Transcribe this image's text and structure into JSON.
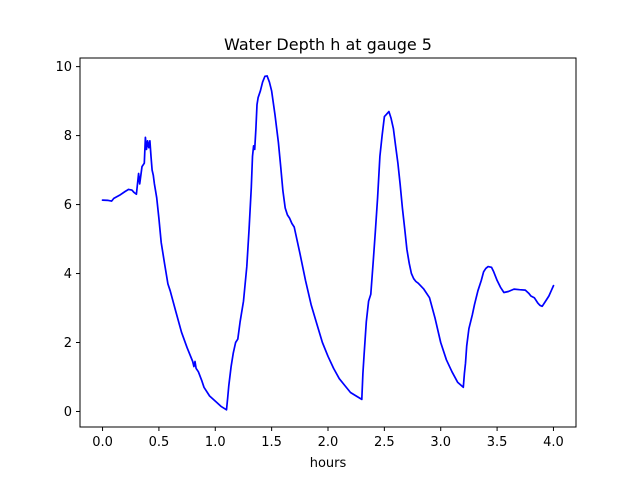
{
  "chart_data": {
    "type": "line",
    "title": "Water Depth h at gauge 5",
    "xlabel": "hours",
    "ylabel": "",
    "xlim": [
      -0.2,
      4.2
    ],
    "ylim": [
      -0.45,
      10.25
    ],
    "grid": false,
    "x_ticks": [
      0.0,
      0.5,
      1.0,
      1.5,
      2.0,
      2.5,
      3.0,
      3.5,
      4.0
    ],
    "x_tick_labels": [
      "0.0",
      "0.5",
      "1.0",
      "1.5",
      "2.0",
      "2.5",
      "3.0",
      "3.5",
      "4.0"
    ],
    "y_ticks": [
      0,
      2,
      4,
      6,
      8,
      10
    ],
    "y_tick_labels": [
      "0",
      "2",
      "4",
      "6",
      "8",
      "10"
    ],
    "series": [
      {
        "color": "#0000ff",
        "x": [
          0.0,
          0.05,
          0.08,
          0.1,
          0.15,
          0.2,
          0.23,
          0.26,
          0.28,
          0.3,
          0.32,
          0.33,
          0.35,
          0.37,
          0.38,
          0.39,
          0.4,
          0.41,
          0.42,
          0.43,
          0.44,
          0.45,
          0.46,
          0.48,
          0.5,
          0.52,
          0.55,
          0.58,
          0.6,
          0.65,
          0.7,
          0.75,
          0.8,
          0.81,
          0.82,
          0.83,
          0.85,
          0.88,
          0.9,
          0.95,
          1.0,
          1.05,
          1.1,
          1.11,
          1.12,
          1.14,
          1.16,
          1.18,
          1.2,
          1.22,
          1.25,
          1.28,
          1.3,
          1.32,
          1.33,
          1.34,
          1.35,
          1.36,
          1.37,
          1.38,
          1.4,
          1.42,
          1.44,
          1.46,
          1.48,
          1.5,
          1.53,
          1.56,
          1.58,
          1.6,
          1.62,
          1.64,
          1.66,
          1.68,
          1.7,
          1.75,
          1.8,
          1.85,
          1.9,
          1.95,
          2.0,
          2.05,
          2.1,
          2.15,
          2.2,
          2.25,
          2.3,
          2.31,
          2.32,
          2.34,
          2.36,
          2.38,
          2.4,
          2.42,
          2.44,
          2.46,
          2.48,
          2.5,
          2.52,
          2.54,
          2.56,
          2.58,
          2.6,
          2.62,
          2.64,
          2.66,
          2.68,
          2.7,
          2.72,
          2.74,
          2.76,
          2.78,
          2.8,
          2.85,
          2.9,
          2.95,
          3.0,
          3.05,
          3.1,
          3.15,
          3.2,
          3.21,
          3.22,
          3.23,
          3.25,
          3.28,
          3.3,
          3.33,
          3.36,
          3.38,
          3.4,
          3.42,
          3.45,
          3.47,
          3.5,
          3.53,
          3.56,
          3.6,
          3.65,
          3.7,
          3.75,
          3.78,
          3.8,
          3.83,
          3.86,
          3.88,
          3.9,
          3.93,
          3.96,
          3.98,
          4.0
        ],
        "y": [
          6.13,
          6.12,
          6.1,
          6.18,
          6.27,
          6.38,
          6.44,
          6.42,
          6.35,
          6.3,
          6.9,
          6.6,
          7.1,
          7.2,
          7.95,
          7.6,
          7.85,
          7.65,
          7.85,
          7.4,
          7.0,
          6.85,
          6.6,
          6.2,
          5.6,
          4.9,
          4.3,
          3.7,
          3.5,
          2.9,
          2.3,
          1.85,
          1.45,
          1.3,
          1.45,
          1.25,
          1.15,
          0.9,
          0.7,
          0.45,
          0.3,
          0.15,
          0.05,
          0.4,
          0.75,
          1.3,
          1.7,
          2.0,
          2.1,
          2.6,
          3.2,
          4.2,
          5.3,
          6.5,
          7.4,
          7.7,
          7.6,
          8.2,
          8.9,
          9.1,
          9.3,
          9.55,
          9.72,
          9.73,
          9.55,
          9.3,
          8.6,
          7.8,
          7.1,
          6.4,
          5.9,
          5.7,
          5.6,
          5.45,
          5.35,
          4.6,
          3.8,
          3.1,
          2.55,
          2.0,
          1.6,
          1.25,
          0.95,
          0.75,
          0.55,
          0.45,
          0.35,
          1.1,
          1.65,
          2.6,
          3.2,
          3.4,
          4.3,
          5.2,
          6.2,
          7.4,
          8.0,
          8.55,
          8.62,
          8.7,
          8.5,
          8.2,
          7.7,
          7.2,
          6.6,
          5.9,
          5.3,
          4.7,
          4.3,
          4.0,
          3.85,
          3.77,
          3.72,
          3.55,
          3.3,
          2.7,
          2.0,
          1.5,
          1.15,
          0.85,
          0.7,
          1.1,
          1.4,
          1.9,
          2.4,
          2.8,
          3.1,
          3.5,
          3.8,
          4.05,
          4.15,
          4.2,
          4.18,
          4.05,
          3.8,
          3.6,
          3.45,
          3.48,
          3.55,
          3.53,
          3.52,
          3.43,
          3.35,
          3.3,
          3.15,
          3.08,
          3.05,
          3.2,
          3.35,
          3.5,
          3.65
        ]
      }
    ]
  }
}
